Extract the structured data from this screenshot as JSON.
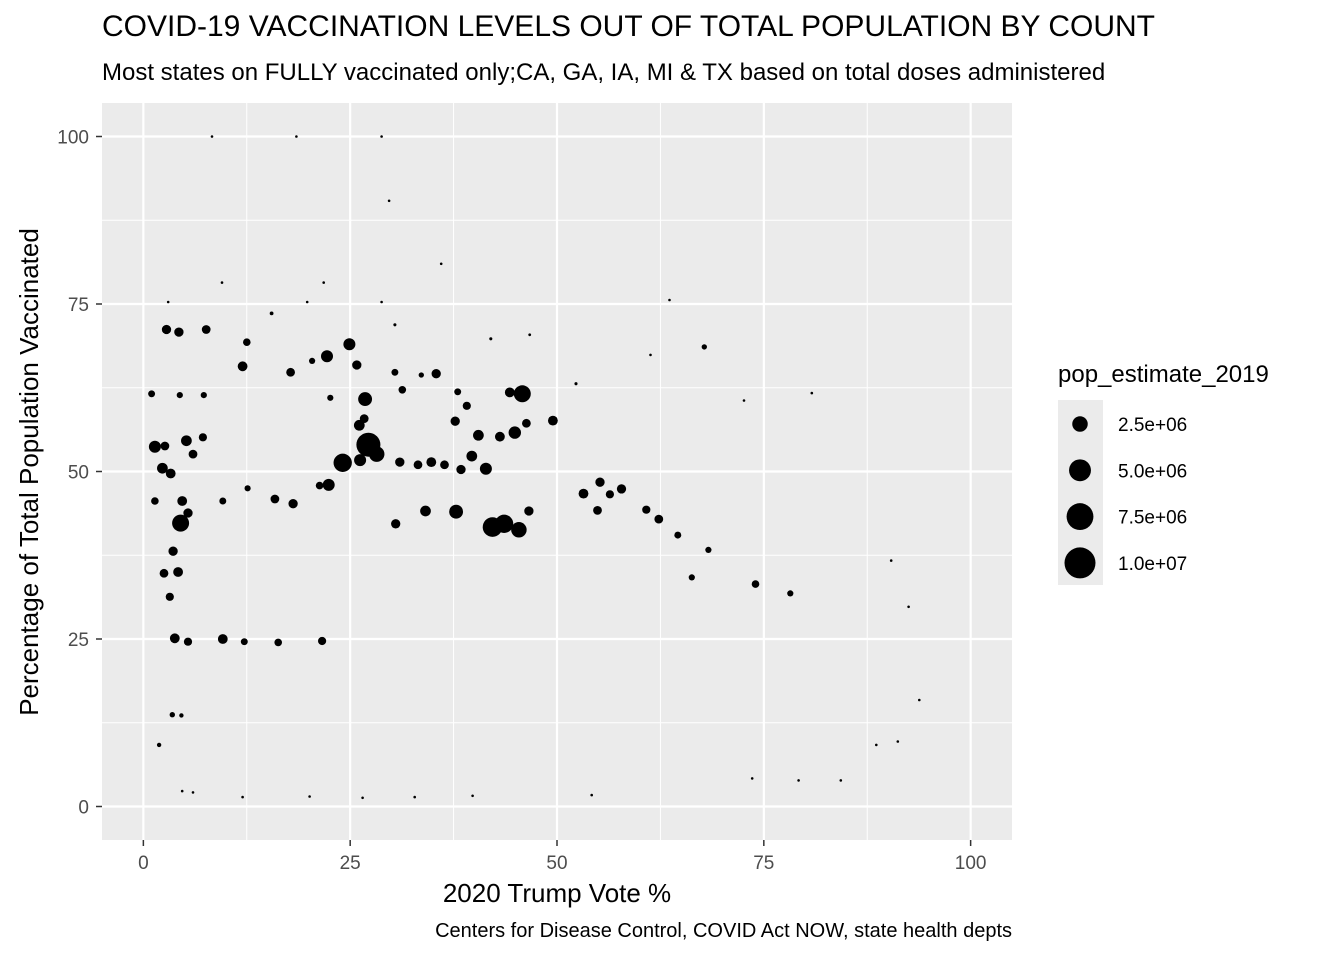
{
  "title": "COVID-19 VACCINATION LEVELS OUT OF TOTAL POPULATION BY COUNT",
  "subtitle": "Most states on FULLY vaccinated only;CA, GA, IA, MI & TX based on total doses administered",
  "caption": "Centers for Disease Control, COVID Act NOW, state health depts",
  "chart_data": {
    "type": "scatter",
    "xlabel": "2020 Trump Vote %",
    "ylabel": "Percentage of Total Population Vaccinated",
    "xlim": [
      -5,
      105
    ],
    "ylim": [
      -5,
      105
    ],
    "x_ticks": [
      0,
      25,
      50,
      75,
      100
    ],
    "y_ticks": [
      0,
      25,
      50,
      75,
      100
    ],
    "grid": true,
    "panel_color": "#ebebeb",
    "point_color": "#000000",
    "legend": {
      "title": "pop_estimate_2019",
      "placement": "right",
      "entries": [
        {
          "label": "2.5e+06",
          "value": 2500000
        },
        {
          "label": "5.0e+06",
          "value": 5000000
        },
        {
          "label": "7.5e+06",
          "value": 7500000
        },
        {
          "label": "1.0e+07",
          "value": 10000000
        }
      ]
    },
    "points": [
      {
        "x": 8.3,
        "y": 100,
        "pop": 10000
      },
      {
        "x": 18.5,
        "y": 100,
        "pop": 10000
      },
      {
        "x": 28.8,
        "y": 100,
        "pop": 10000
      },
      {
        "x": 29.7,
        "y": 90.4,
        "pop": 30000
      },
      {
        "x": 36,
        "y": 81,
        "pop": 10000
      },
      {
        "x": 9.5,
        "y": 78.2,
        "pop": 20000
      },
      {
        "x": 21.8,
        "y": 78.2,
        "pop": 15000
      },
      {
        "x": 3,
        "y": 75.3,
        "pop": 15000
      },
      {
        "x": 19.8,
        "y": 75.3,
        "pop": 15000
      },
      {
        "x": 28.8,
        "y": 75.3,
        "pop": 20000
      },
      {
        "x": 63.6,
        "y": 75.6,
        "pop": 10000
      },
      {
        "x": 2.8,
        "y": 71.2,
        "pop": 900000
      },
      {
        "x": 4.3,
        "y": 70.8,
        "pop": 900000
      },
      {
        "x": 7.6,
        "y": 71.2,
        "pop": 800000
      },
      {
        "x": 15.5,
        "y": 73.6,
        "pop": 150000
      },
      {
        "x": 12.5,
        "y": 69.3,
        "pop": 600000
      },
      {
        "x": 30.4,
        "y": 71.9,
        "pop": 100000
      },
      {
        "x": 24.9,
        "y": 69,
        "pop": 1500000
      },
      {
        "x": 22.2,
        "y": 67.2,
        "pop": 1500000
      },
      {
        "x": 20.4,
        "y": 66.5,
        "pop": 400000
      },
      {
        "x": 12,
        "y": 65.7,
        "pop": 1000000
      },
      {
        "x": 17.8,
        "y": 64.8,
        "pop": 800000
      },
      {
        "x": 25.8,
        "y": 65.9,
        "pop": 900000
      },
      {
        "x": 33.6,
        "y": 64.4,
        "pop": 300000
      },
      {
        "x": 35.4,
        "y": 64.6,
        "pop": 900000
      },
      {
        "x": 30.4,
        "y": 64.8,
        "pop": 500000
      },
      {
        "x": 42,
        "y": 69.8,
        "pop": 100000
      },
      {
        "x": 46.7,
        "y": 70.4,
        "pop": 80000
      },
      {
        "x": 67.8,
        "y": 68.6,
        "pop": 300000
      },
      {
        "x": 61.3,
        "y": 67.4,
        "pop": 60000
      },
      {
        "x": 1,
        "y": 61.6,
        "pop": 500000
      },
      {
        "x": 4.4,
        "y": 61.4,
        "pop": 400000
      },
      {
        "x": 7.3,
        "y": 61.4,
        "pop": 400000
      },
      {
        "x": 26.8,
        "y": 60.8,
        "pop": 2000000
      },
      {
        "x": 22.6,
        "y": 61,
        "pop": 400000
      },
      {
        "x": 45.8,
        "y": 61.6,
        "pop": 3000000
      },
      {
        "x": 44.3,
        "y": 61.8,
        "pop": 1000000
      },
      {
        "x": 31.3,
        "y": 62.2,
        "pop": 600000
      },
      {
        "x": 38,
        "y": 61.9,
        "pop": 500000
      },
      {
        "x": 52.3,
        "y": 63.1,
        "pop": 100000
      },
      {
        "x": 72.6,
        "y": 60.6,
        "pop": 20000
      },
      {
        "x": 80.8,
        "y": 61.7,
        "pop": 20000
      },
      {
        "x": 1.4,
        "y": 53.7,
        "pop": 1500000
      },
      {
        "x": 2.6,
        "y": 53.8,
        "pop": 800000
      },
      {
        "x": 5.2,
        "y": 54.6,
        "pop": 1200000
      },
      {
        "x": 7.2,
        "y": 55.1,
        "pop": 700000
      },
      {
        "x": 6,
        "y": 52.6,
        "pop": 800000
      },
      {
        "x": 2.3,
        "y": 50.5,
        "pop": 1200000
      },
      {
        "x": 3.3,
        "y": 49.7,
        "pop": 1000000
      },
      {
        "x": 1.4,
        "y": 45.6,
        "pop": 600000
      },
      {
        "x": 4.7,
        "y": 45.6,
        "pop": 1000000
      },
      {
        "x": 5.4,
        "y": 43.8,
        "pop": 900000
      },
      {
        "x": 9.6,
        "y": 45.6,
        "pop": 500000
      },
      {
        "x": 4.5,
        "y": 42.3,
        "pop": 3000000
      },
      {
        "x": 3.6,
        "y": 38.1,
        "pop": 900000
      },
      {
        "x": 2.5,
        "y": 34.8,
        "pop": 800000
      },
      {
        "x": 4.2,
        "y": 35,
        "pop": 1000000
      },
      {
        "x": 3.2,
        "y": 31.3,
        "pop": 700000
      },
      {
        "x": 3.8,
        "y": 25.1,
        "pop": 1000000
      },
      {
        "x": 5.4,
        "y": 24.6,
        "pop": 700000
      },
      {
        "x": 9.6,
        "y": 25,
        "pop": 1000000
      },
      {
        "x": 12.2,
        "y": 24.6,
        "pop": 500000
      },
      {
        "x": 16.3,
        "y": 24.5,
        "pop": 600000
      },
      {
        "x": 21.6,
        "y": 24.7,
        "pop": 700000
      },
      {
        "x": 12.6,
        "y": 47.5,
        "pop": 400000
      },
      {
        "x": 15.9,
        "y": 45.9,
        "pop": 800000
      },
      {
        "x": 18.1,
        "y": 45.2,
        "pop": 900000
      },
      {
        "x": 21.3,
        "y": 47.9,
        "pop": 600000
      },
      {
        "x": 22.4,
        "y": 48,
        "pop": 1500000
      },
      {
        "x": 24.1,
        "y": 51.3,
        "pop": 3500000
      },
      {
        "x": 26.2,
        "y": 51.7,
        "pop": 1500000
      },
      {
        "x": 27.2,
        "y": 54,
        "pop": 6000000
      },
      {
        "x": 28.2,
        "y": 52.6,
        "pop": 2500000
      },
      {
        "x": 26.1,
        "y": 56.9,
        "pop": 1200000
      },
      {
        "x": 26.7,
        "y": 57.9,
        "pop": 800000
      },
      {
        "x": 31,
        "y": 51.4,
        "pop": 900000
      },
      {
        "x": 33.2,
        "y": 51,
        "pop": 800000
      },
      {
        "x": 34.8,
        "y": 51.4,
        "pop": 1000000
      },
      {
        "x": 36.4,
        "y": 51,
        "pop": 800000
      },
      {
        "x": 38.4,
        "y": 50.3,
        "pop": 900000
      },
      {
        "x": 39.7,
        "y": 52.3,
        "pop": 1200000
      },
      {
        "x": 41.4,
        "y": 50.4,
        "pop": 1500000
      },
      {
        "x": 40.5,
        "y": 55.4,
        "pop": 1200000
      },
      {
        "x": 43.1,
        "y": 55.2,
        "pop": 1000000
      },
      {
        "x": 44.9,
        "y": 55.8,
        "pop": 1600000
      },
      {
        "x": 46.3,
        "y": 57.2,
        "pop": 800000
      },
      {
        "x": 37.7,
        "y": 57.5,
        "pop": 900000
      },
      {
        "x": 39.1,
        "y": 59.8,
        "pop": 700000
      },
      {
        "x": 49.5,
        "y": 57.6,
        "pop": 1000000
      },
      {
        "x": 37.8,
        "y": 44,
        "pop": 2000000
      },
      {
        "x": 34.1,
        "y": 44.1,
        "pop": 1200000
      },
      {
        "x": 30.5,
        "y": 42.2,
        "pop": 900000
      },
      {
        "x": 42.2,
        "y": 41.7,
        "pop": 4000000
      },
      {
        "x": 43.6,
        "y": 42.2,
        "pop": 3500000
      },
      {
        "x": 45.4,
        "y": 41.3,
        "pop": 2500000
      },
      {
        "x": 46.6,
        "y": 44.1,
        "pop": 900000
      },
      {
        "x": 53.2,
        "y": 46.7,
        "pop": 1000000
      },
      {
        "x": 55.2,
        "y": 48.4,
        "pop": 900000
      },
      {
        "x": 57.8,
        "y": 47.4,
        "pop": 900000
      },
      {
        "x": 54.9,
        "y": 44.2,
        "pop": 800000
      },
      {
        "x": 60.8,
        "y": 44.3,
        "pop": 700000
      },
      {
        "x": 62.3,
        "y": 42.9,
        "pop": 800000
      },
      {
        "x": 56.4,
        "y": 46.6,
        "pop": 700000
      },
      {
        "x": 64.6,
        "y": 40.5,
        "pop": 500000
      },
      {
        "x": 68.3,
        "y": 38.3,
        "pop": 400000
      },
      {
        "x": 66.3,
        "y": 34.2,
        "pop": 400000
      },
      {
        "x": 74,
        "y": 33.2,
        "pop": 600000
      },
      {
        "x": 78.2,
        "y": 31.8,
        "pop": 400000
      },
      {
        "x": 3.5,
        "y": 13.7,
        "pop": 300000
      },
      {
        "x": 4.6,
        "y": 13.6,
        "pop": 200000
      },
      {
        "x": 1.9,
        "y": 9.2,
        "pop": 200000
      },
      {
        "x": 4.7,
        "y": 2.3,
        "pop": 30000
      },
      {
        "x": 6,
        "y": 2.1,
        "pop": 30000
      },
      {
        "x": 12,
        "y": 1.4,
        "pop": 30000
      },
      {
        "x": 20.1,
        "y": 1.5,
        "pop": 30000
      },
      {
        "x": 26.5,
        "y": 1.3,
        "pop": 30000
      },
      {
        "x": 32.8,
        "y": 1.4,
        "pop": 30000
      },
      {
        "x": 39.8,
        "y": 1.6,
        "pop": 40000
      },
      {
        "x": 54.2,
        "y": 1.7,
        "pop": 30000
      },
      {
        "x": 73.6,
        "y": 4.2,
        "pop": 30000
      },
      {
        "x": 79.2,
        "y": 3.9,
        "pop": 20000
      },
      {
        "x": 84.3,
        "y": 3.9,
        "pop": 20000
      },
      {
        "x": 93.8,
        "y": 15.9,
        "pop": 20000
      },
      {
        "x": 92.5,
        "y": 29.8,
        "pop": 20000
      },
      {
        "x": 90.4,
        "y": 36.7,
        "pop": 30000
      },
      {
        "x": 88.6,
        "y": 9.2,
        "pop": 20000
      },
      {
        "x": 91.2,
        "y": 9.7,
        "pop": 20000
      }
    ]
  }
}
